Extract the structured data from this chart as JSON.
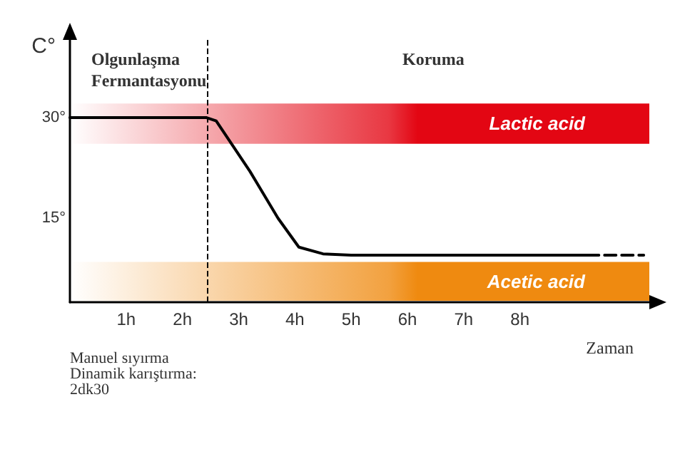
{
  "chart_data": {
    "type": "line",
    "xlabel": "Zaman",
    "ylabel": "C°",
    "xlim": [
      0,
      10.3
    ],
    "ylim": [
      2.5,
      42
    ],
    "xticks": [
      {
        "value": 1,
        "label": "1h"
      },
      {
        "value": 2,
        "label": "2h"
      },
      {
        "value": 3,
        "label": "3h"
      },
      {
        "value": 4,
        "label": "4h"
      },
      {
        "value": 5,
        "label": "5h"
      },
      {
        "value": 6,
        "label": "6h"
      },
      {
        "value": 7,
        "label": "7h"
      },
      {
        "value": 8,
        "label": "8h"
      }
    ],
    "yticks": [
      {
        "value": 15,
        "label": "15°"
      },
      {
        "value": 30,
        "label": "30°"
      }
    ],
    "series": [
      {
        "color": "#000000",
        "line_style": "solid",
        "x": [
          0,
          2.43,
          2.6,
          3.2,
          3.7,
          4.07,
          4.5,
          5,
          9.2
        ],
        "values": [
          30,
          30,
          29.5,
          22,
          15,
          10.7,
          9.7,
          9.5,
          9.5
        ]
      },
      {
        "color": "#000000",
        "line_style": "dashed",
        "x": [
          9.2,
          10.2
        ],
        "values": [
          9.5,
          9.5
        ]
      }
    ],
    "bands": [
      {
        "axis": "y",
        "from": 26.1,
        "to": 32.1,
        "label": "Lactic acid",
        "color": "#e30613"
      },
      {
        "axis": "y",
        "from": 2.7,
        "to": 8.5,
        "label": "Acetic acid",
        "color": "#ef8a10"
      }
    ],
    "ref_lines": [
      {
        "axis": "x",
        "value": 2.43,
        "line_style": "dashed",
        "color": "#000000"
      }
    ],
    "annotations": [
      "Olgunlaşma\nFermantasyonu",
      "Koruma",
      "Manuel sıyırma\nDinamik karıştırma:\n2dk30"
    ],
    "grid": false,
    "marker": "none"
  }
}
